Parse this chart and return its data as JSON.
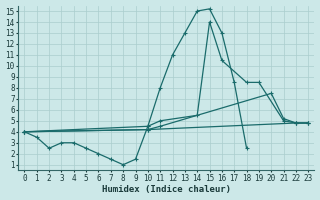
{
  "xlabel": "Humidex (Indice chaleur)",
  "xlim": [
    -0.5,
    23.5
  ],
  "ylim": [
    0.5,
    15.5
  ],
  "xticks": [
    0,
    1,
    2,
    3,
    4,
    5,
    6,
    7,
    8,
    9,
    10,
    11,
    12,
    13,
    14,
    15,
    16,
    17,
    18,
    19,
    20,
    21,
    22,
    23
  ],
  "yticks": [
    1,
    2,
    3,
    4,
    5,
    6,
    7,
    8,
    9,
    10,
    11,
    12,
    13,
    14,
    15
  ],
  "background_color": "#cce8e8",
  "grid_color": "#aacece",
  "line_color": "#1a6b6b",
  "line1_x": [
    0,
    1,
    2,
    3,
    4,
    5,
    6,
    7,
    8,
    9,
    10,
    11,
    12,
    13,
    14,
    15,
    16,
    17,
    18
  ],
  "line1_y": [
    4,
    3.5,
    2.5,
    3,
    3,
    2.5,
    2,
    1.5,
    1,
    1.5,
    4.5,
    8,
    11,
    13,
    15,
    15.2,
    13,
    8.5,
    2.5
  ],
  "line2_x": [
    0,
    10,
    11,
    14,
    15,
    16,
    18,
    19,
    21,
    22,
    23
  ],
  "line2_y": [
    4,
    4.5,
    5,
    5.5,
    14,
    10.5,
    8.5,
    8.5,
    5,
    4.8,
    4.8
  ],
  "line3_x": [
    0,
    10,
    11,
    20,
    21,
    22,
    23
  ],
  "line3_y": [
    4,
    4.2,
    4.5,
    7.5,
    5.2,
    4.8,
    4.8
  ],
  "line4_x": [
    0,
    10,
    22,
    23
  ],
  "line4_y": [
    4,
    4.2,
    4.8,
    4.8
  ]
}
